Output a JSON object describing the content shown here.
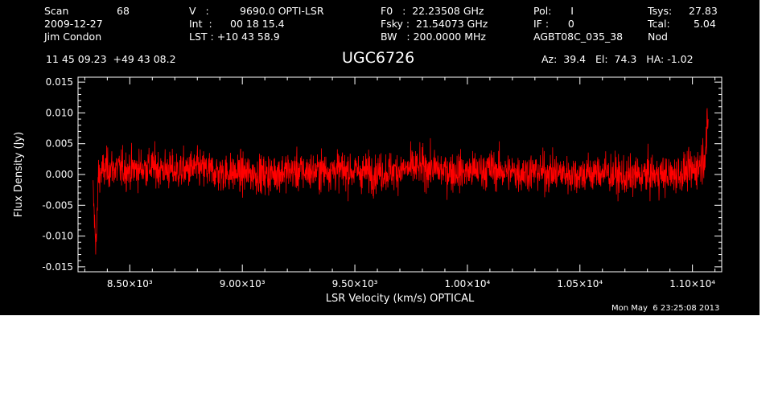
{
  "header": {
    "col1": [
      "Scan",
      "2009-12-27",
      "Jim Condon"
    ],
    "scan_no": "68",
    "col2": [
      "V   :",
      "Int  :",
      "LST : +10 43 58.9"
    ],
    "col2_vals": [
      "9690.0 OPTI-LSR",
      "00 18 15.4",
      ""
    ],
    "col3": [
      "F0   :  22.23508 GHz",
      "Fsky :  21.54073 GHz",
      "BW   : 200.0000 MHz"
    ],
    "col4": [
      "Pol:      I",
      "IF :      0",
      "AGBT08C_035_38"
    ],
    "col5": [
      "Tsys:",
      "Tcal:",
      "Nod"
    ],
    "col5_vals": [
      "27.83",
      "5.04",
      ""
    ],
    "coords": "11 45 09.23  +49 43 08.2",
    "source": "UGC6726",
    "azel": "Az:  39.4   El:  74.3   HA: -1.02",
    "datestamp": "Mon May  6 23:25:08 2013"
  },
  "chart_data": {
    "type": "line",
    "xlabel": "LSR Velocity (km/s) OPTICAL",
    "ylabel": "Flux Density (Jy)",
    "xlim": [
      8270,
      11130
    ],
    "ylim": [
      -0.0158,
      0.0158
    ],
    "x_ticks": [
      8500,
      9000,
      9500,
      10000,
      10500,
      11000
    ],
    "x_tick_labels": [
      "8.50×10³",
      "9.00×10³",
      "9.50×10³",
      "1.00×10⁴",
      "1.05×10⁴",
      "1.10×10⁴"
    ],
    "y_ticks": [
      -0.015,
      -0.01,
      -0.005,
      0.0,
      0.005,
      0.01,
      0.015
    ],
    "y_tick_labels": [
      "-0.015",
      "-0.010",
      "-0.005",
      "0.000",
      "0.005",
      "0.010",
      "0.015"
    ],
    "series": [
      {
        "color": "#ff0000",
        "x": [
          8337,
          8345,
          8352,
          8360,
          8400,
          8500,
          8600,
          8700,
          8800,
          8900,
          9000,
          9100,
          9200,
          9300,
          9400,
          9500,
          9600,
          9700,
          9800,
          9900,
          10000,
          10100,
          10200,
          10300,
          10400,
          10500,
          10600,
          10700,
          10800,
          10900,
          10950,
          11000,
          11030,
          11050,
          11065,
          11070
        ],
        "y": [
          -0.003,
          -0.009,
          -0.011,
          0.0,
          0.001,
          0.0008,
          0.0012,
          0.0005,
          0.001,
          0.0003,
          0.0002,
          0.0,
          0.0006,
          0.0004,
          0.0008,
          0.0005,
          0.0003,
          0.0007,
          0.0012,
          0.0006,
          0.0004,
          0.0009,
          0.0003,
          0.0005,
          0.0002,
          0.0,
          0.0004,
          -0.0005,
          0.0,
          -0.0002,
          0.0003,
          0.0006,
          0.0015,
          0.003,
          0.006,
          0.008
        ],
        "noise_rms": 0.0022
      }
    ]
  }
}
